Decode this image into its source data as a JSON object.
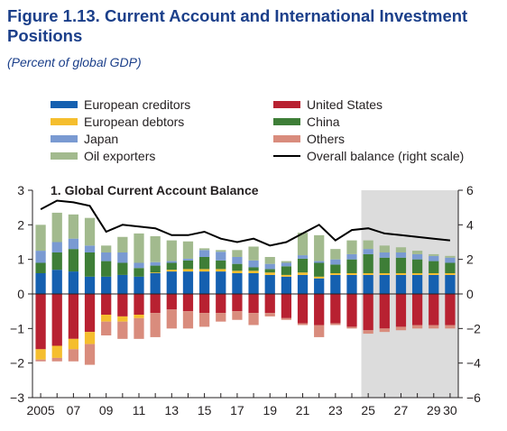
{
  "figure": {
    "title": "Figure 1.13. Current Account and International Investment Positions",
    "subtitle": "(Percent of global GDP)"
  },
  "legend": [
    {
      "label": "European creditors",
      "color": "#1560b0",
      "kind": "bar"
    },
    {
      "label": "European debtors",
      "color": "#f5be2e",
      "kind": "bar"
    },
    {
      "label": "Japan",
      "color": "#7a9ad2",
      "kind": "bar"
    },
    {
      "label": "Oil exporters",
      "color": "#a2ba8e",
      "kind": "bar"
    },
    {
      "label": "United States",
      "color": "#b82131",
      "kind": "bar"
    },
    {
      "label": "China",
      "color": "#3e7e37",
      "kind": "bar"
    },
    {
      "label": "Others",
      "color": "#d98c7d",
      "kind": "bar"
    },
    {
      "label": "Overall balance (right scale)",
      "color": "#000000",
      "kind": "line"
    }
  ],
  "chart_data": {
    "type": "bar",
    "stacked": true,
    "panel_title": "1. Global Current Account Balance",
    "years": [
      2005,
      2006,
      2007,
      2008,
      2009,
      2010,
      2011,
      2012,
      2013,
      2014,
      2015,
      2016,
      2017,
      2018,
      2019,
      2020,
      2021,
      2022,
      2023,
      2024,
      2025,
      2026,
      2027,
      2028,
      2029,
      2030
    ],
    "x_tick_labels": [
      "2005",
      "07",
      "09",
      "11",
      "13",
      "15",
      "17",
      "19",
      "21",
      "23",
      "25",
      "27",
      "29",
      "30"
    ],
    "y_left": {
      "min": -3,
      "max": 3,
      "ticks": [
        "−3",
        "−2",
        "−1",
        "0",
        "1",
        "2",
        "3"
      ]
    },
    "y_right": {
      "min": -6,
      "max": 6,
      "ticks": [
        "−6",
        "−4",
        "−2",
        "0",
        "2",
        "4",
        "6"
      ]
    },
    "projection_shading_from": 2025,
    "series_positive": [
      {
        "name": "European creditors",
        "color": "#1560b0",
        "values": [
          0.6,
          0.7,
          0.65,
          0.5,
          0.5,
          0.55,
          0.5,
          0.6,
          0.65,
          0.65,
          0.65,
          0.65,
          0.6,
          0.6,
          0.55,
          0.5,
          0.55,
          0.45,
          0.55,
          0.55,
          0.55,
          0.55,
          0.55,
          0.55,
          0.55,
          0.55
        ]
      },
      {
        "name": "European debtors",
        "color": "#f5be2e",
        "values": [
          0,
          0,
          0,
          0,
          0,
          0,
          0,
          0.02,
          0.05,
          0.07,
          0.07,
          0.07,
          0.07,
          0.07,
          0.07,
          0.05,
          0.07,
          0.05,
          0.05,
          0.05,
          0.05,
          0.05,
          0.05,
          0.05,
          0.05,
          0.05
        ]
      },
      {
        "name": "China",
        "color": "#3e7e37",
        "values": [
          0.3,
          0.5,
          0.65,
          0.7,
          0.45,
          0.35,
          0.25,
          0.2,
          0.2,
          0.25,
          0.35,
          0.25,
          0.2,
          0.1,
          0.1,
          0.25,
          0.4,
          0.4,
          0.25,
          0.4,
          0.55,
          0.45,
          0.45,
          0.4,
          0.35,
          0.3
        ]
      },
      {
        "name": "Japan",
        "color": "#7a9ad2",
        "values": [
          0.35,
          0.3,
          0.3,
          0.2,
          0.25,
          0.3,
          0.15,
          0.1,
          0.05,
          0.05,
          0.2,
          0.25,
          0.2,
          0.2,
          0.15,
          0.1,
          0.1,
          0.05,
          0.15,
          0.15,
          0.15,
          0.15,
          0.15,
          0.15,
          0.15,
          0.15
        ]
      },
      {
        "name": "Oil exporters",
        "color": "#a2ba8e",
        "values": [
          0.75,
          0.85,
          0.7,
          0.8,
          0.2,
          0.45,
          0.85,
          0.75,
          0.6,
          0.5,
          0.05,
          0.05,
          0.2,
          0.4,
          0.2,
          0.05,
          0.65,
          0.75,
          0.3,
          0.4,
          0.25,
          0.2,
          0.15,
          0.1,
          0.05,
          0.05
        ]
      }
    ],
    "series_negative": [
      {
        "name": "United States",
        "color": "#b82131",
        "values": [
          -1.6,
          -1.5,
          -1.3,
          -1.1,
          -0.6,
          -0.65,
          -0.6,
          -0.55,
          -0.45,
          -0.5,
          -0.55,
          -0.55,
          -0.5,
          -0.55,
          -0.55,
          -0.7,
          -0.85,
          -0.9,
          -0.85,
          -0.95,
          -1.05,
          -1.0,
          -0.95,
          -0.9,
          -0.9,
          -0.9
        ]
      },
      {
        "name": "European debtors",
        "color": "#f5be2e",
        "values": [
          -0.3,
          -0.35,
          -0.3,
          -0.35,
          -0.2,
          -0.15,
          -0.1,
          0,
          0,
          0,
          0,
          0,
          0,
          0,
          0,
          0,
          0,
          0,
          0,
          0,
          0,
          0,
          0,
          0,
          0,
          0
        ]
      },
      {
        "name": "Others",
        "color": "#d98c7d",
        "values": [
          -0.05,
          -0.1,
          -0.35,
          -0.6,
          -0.4,
          -0.5,
          -0.6,
          -0.7,
          -0.55,
          -0.5,
          -0.4,
          -0.25,
          -0.25,
          -0.35,
          -0.1,
          -0.05,
          -0.05,
          -0.35,
          -0.05,
          -0.05,
          -0.1,
          -0.1,
          -0.1,
          -0.1,
          -0.1,
          -0.1
        ]
      }
    ],
    "overall_balance": [
      4.9,
      5.4,
      5.3,
      5.1,
      3.6,
      4.0,
      3.9,
      3.8,
      3.4,
      3.4,
      3.6,
      3.2,
      3.0,
      3.2,
      2.8,
      3.0,
      3.5,
      4.0,
      3.1,
      3.7,
      3.8,
      3.5,
      3.4,
      3.3,
      3.2,
      3.1
    ]
  }
}
